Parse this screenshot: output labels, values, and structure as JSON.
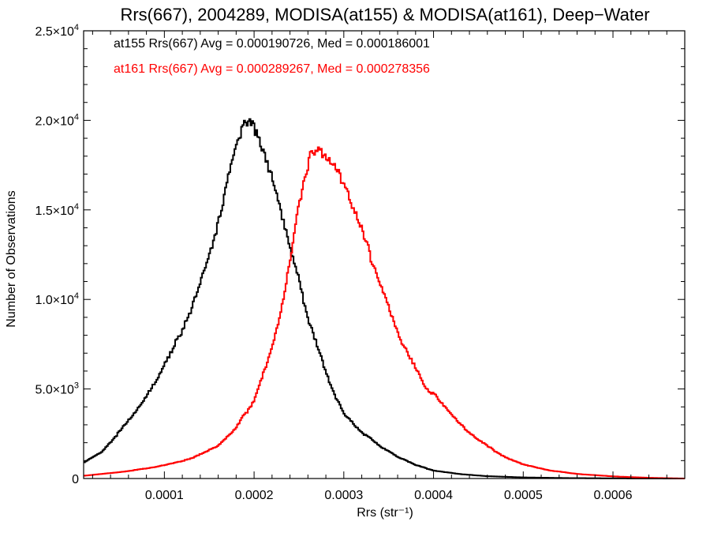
{
  "chart_data": {
    "type": "histogram",
    "title": "Rrs(667), 2004289, MODISA(at155) & MODISA(at161), Deep−Water",
    "xlabel": "Rrs (str⁻¹)",
    "ylabel": "Number of Observations",
    "xlim": [
      1e-05,
      0.00068
    ],
    "ylim": [
      0,
      25000
    ],
    "x_ticks": [
      0.0001,
      0.0002,
      0.0003,
      0.0004,
      0.0005,
      0.0006
    ],
    "x_tick_labels": [
      "0.0001",
      "0.0002",
      "0.0003",
      "0.0004",
      "0.0005",
      "0.0006"
    ],
    "y_ticks": [
      0,
      5000,
      10000,
      15000,
      20000,
      25000
    ],
    "y_tick_labels": [
      {
        "mant": "0",
        "exp": ""
      },
      {
        "mant": "5.0×10",
        "exp": "3"
      },
      {
        "mant": "1.0×10",
        "exp": "4"
      },
      {
        "mant": "1.5×10",
        "exp": "4"
      },
      {
        "mant": "2.0×10",
        "exp": "4"
      },
      {
        "mant": "2.5×10",
        "exp": "4"
      }
    ],
    "grid": false,
    "legend_placement": "top-left",
    "series": [
      {
        "name": "at155",
        "color": "#000000",
        "legend": "at155 Rrs(667) Avg = 0.000190726, Med = 0.000186001",
        "points": [
          [
            1e-05,
            900
          ],
          [
            3e-05,
            1500
          ],
          [
            5e-05,
            2600
          ],
          [
            7e-05,
            3800
          ],
          [
            9e-05,
            5300
          ],
          [
            0.00011,
            7200
          ],
          [
            0.00013,
            9600
          ],
          [
            0.00015,
            12600
          ],
          [
            0.00016,
            14500
          ],
          [
            0.00017,
            16700
          ],
          [
            0.00018,
            19200
          ],
          [
            0.00019,
            19800
          ],
          [
            0.0002,
            19300
          ],
          [
            0.00021,
            18000
          ],
          [
            0.00022,
            16600
          ],
          [
            0.00023,
            14600
          ],
          [
            0.00024,
            12700
          ],
          [
            0.00025,
            11000
          ],
          [
            0.00026,
            9100
          ],
          [
            0.00027,
            7600
          ],
          [
            0.00028,
            6000
          ],
          [
            0.00029,
            4700
          ],
          [
            0.0003,
            3700
          ],
          [
            0.00032,
            2600
          ],
          [
            0.00034,
            1800
          ],
          [
            0.00036,
            1200
          ],
          [
            0.00038,
            750
          ],
          [
            0.0004,
            450
          ],
          [
            0.00043,
            250
          ],
          [
            0.00046,
            130
          ],
          [
            0.0005,
            60
          ],
          [
            0.00055,
            25
          ],
          [
            0.0006,
            10
          ],
          [
            0.00068,
            0
          ]
        ]
      },
      {
        "name": "at161",
        "color": "#ff0000",
        "legend": "at161 Rrs(667) Avg = 0.000289267, Med = 0.000278356",
        "points": [
          [
            1e-05,
            150
          ],
          [
            5e-05,
            350
          ],
          [
            9e-05,
            650
          ],
          [
            0.00013,
            1100
          ],
          [
            0.00016,
            1800
          ],
          [
            0.00018,
            2800
          ],
          [
            0.0002,
            4400
          ],
          [
            0.00022,
            7400
          ],
          [
            0.00023,
            9400
          ],
          [
            0.00024,
            12400
          ],
          [
            0.00025,
            15600
          ],
          [
            0.00026,
            17600
          ],
          [
            0.00027,
            18100
          ],
          [
            0.00028,
            17700
          ],
          [
            0.00029,
            17200
          ],
          [
            0.0003,
            16200
          ],
          [
            0.00031,
            15000
          ],
          [
            0.00032,
            13700
          ],
          [
            0.00033,
            12500
          ],
          [
            0.00034,
            11000
          ],
          [
            0.00035,
            9700
          ],
          [
            0.00036,
            8200
          ],
          [
            0.00037,
            7200
          ],
          [
            0.00038,
            6300
          ],
          [
            0.00039,
            5200
          ],
          [
            0.0004,
            4700
          ],
          [
            0.00042,
            3500
          ],
          [
            0.00044,
            2500
          ],
          [
            0.00046,
            1800
          ],
          [
            0.00048,
            1200
          ],
          [
            0.0005,
            800
          ],
          [
            0.00053,
            450
          ],
          [
            0.00056,
            250
          ],
          [
            0.0006,
            120
          ],
          [
            0.00064,
            40
          ],
          [
            0.00068,
            0
          ]
        ]
      }
    ]
  }
}
